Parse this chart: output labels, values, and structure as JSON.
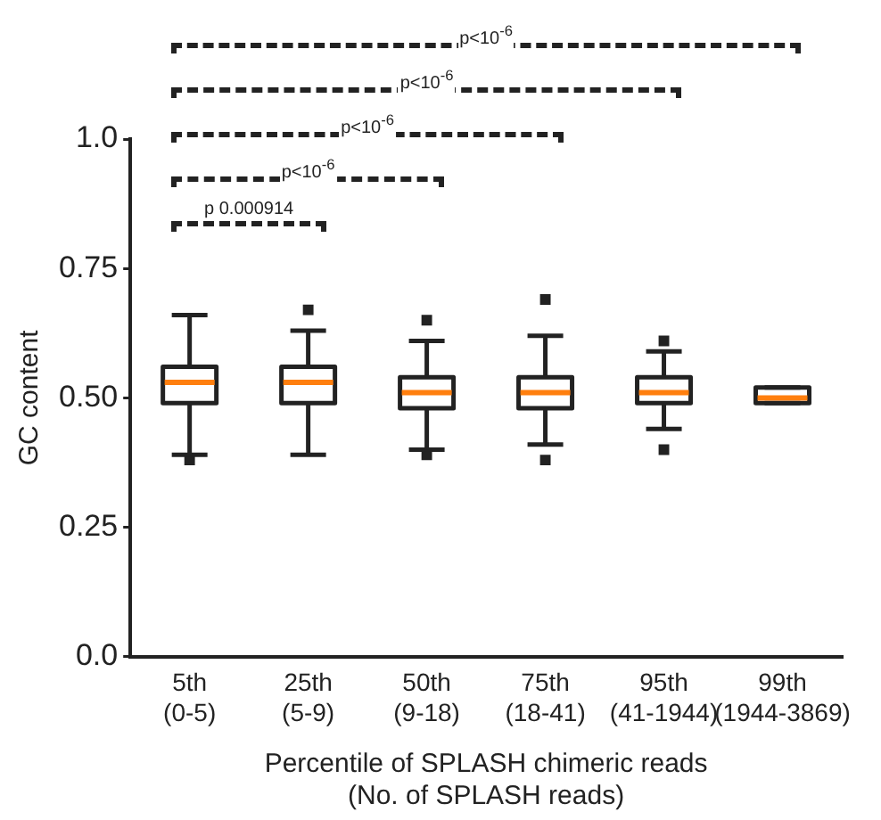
{
  "chart_data": {
    "type": "box",
    "categories": [
      "5th\n(0-5)",
      "25th\n(5-9)",
      "50th\n(9-18)",
      "75th\n(18-41)",
      "95th\n(41-1944)",
      "99th\n(1944-3869)"
    ],
    "series": [
      {
        "color": "#222222",
        "boxes": [
          {
            "low": 0.39,
            "q1": 0.49,
            "median": 0.53,
            "q3": 0.56,
            "high": 0.66,
            "outliers": [
              0.38
            ]
          },
          {
            "low": 0.39,
            "q1": 0.49,
            "median": 0.53,
            "q3": 0.56,
            "high": 0.63,
            "outliers": [
              0.67
            ]
          },
          {
            "low": 0.4,
            "q1": 0.48,
            "median": 0.51,
            "q3": 0.54,
            "high": 0.61,
            "outliers": [
              0.65,
              0.39
            ]
          },
          {
            "low": 0.41,
            "q1": 0.48,
            "median": 0.51,
            "q3": 0.54,
            "high": 0.62,
            "outliers": [
              0.69,
              0.38
            ]
          },
          {
            "low": 0.44,
            "q1": 0.49,
            "median": 0.51,
            "q3": 0.54,
            "high": 0.59,
            "outliers": [
              0.61,
              0.4
            ]
          },
          {
            "low": 0.49,
            "q1": 0.49,
            "median": 0.5,
            "q3": 0.52,
            "high": 0.52
          }
        ]
      }
    ],
    "xlabel": "Percentile of SPLASH chimeric reads\n(No. of SPLASH reads)",
    "ylabel": "GC content",
    "ylim": [
      0,
      1
    ],
    "yticks": [
      {
        "value": 0,
        "label": "0.0"
      },
      0.25,
      {
        "value": 0.5,
        "label": "0.50"
      },
      0.75,
      {
        "value": 1,
        "label": "1.0"
      }
    ],
    "annotations": [
      "p 0.000914",
      "p<10$^{-6}$",
      "p<10$^{-6}$",
      "p<10$^{-6}$",
      "p<10$^{-6}$"
    ],
    "grid": false,
    "legend": false,
    "marker": "square"
  }
}
